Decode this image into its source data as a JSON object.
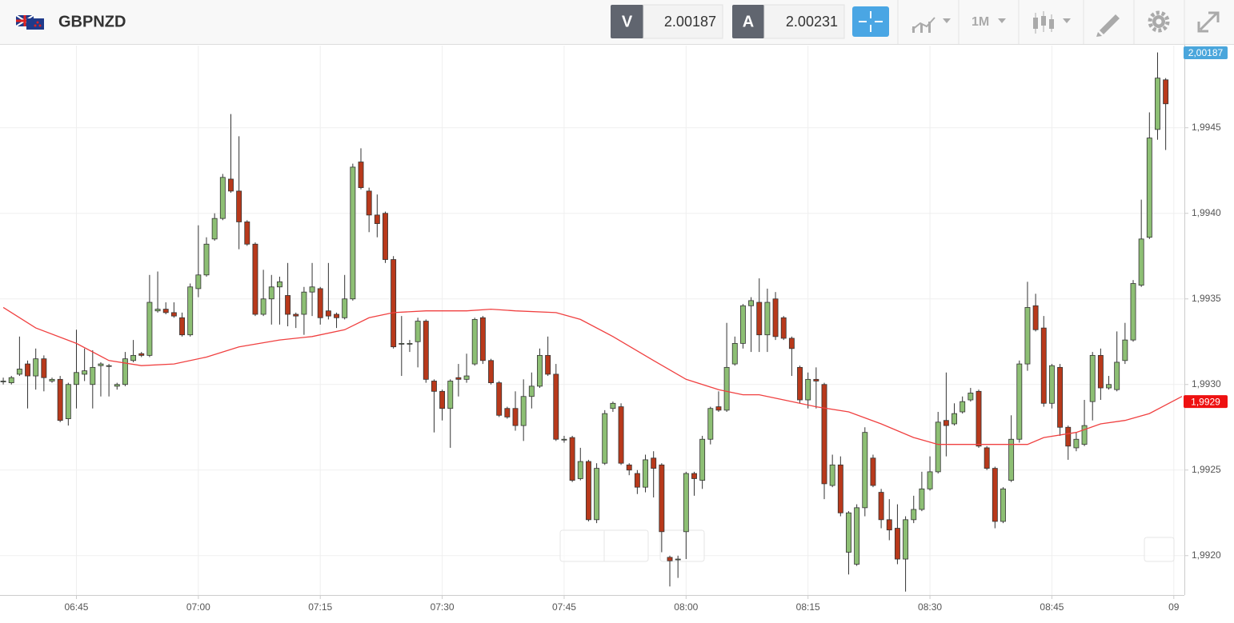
{
  "toolbar": {
    "symbol": "GBPNZD",
    "bid": {
      "label": "V",
      "price": "2.00187"
    },
    "ask": {
      "label": "A",
      "price": "2.00231"
    },
    "timeframe": "1M"
  },
  "chart_data": {
    "type": "candlestick",
    "x": [
      396,
      397,
      398,
      399,
      400,
      401,
      402,
      403,
      404,
      405,
      406,
      407,
      408,
      409,
      410,
      411,
      412,
      413,
      414,
      415,
      416,
      417,
      418,
      419,
      420,
      421,
      422,
      423,
      424,
      425,
      426,
      427,
      428,
      429,
      430,
      431,
      432,
      433,
      434,
      435,
      436,
      437,
      438,
      439,
      440,
      441,
      442,
      443,
      444,
      445,
      446,
      447,
      448,
      449,
      450,
      451,
      452,
      453,
      454,
      455,
      456,
      457,
      458,
      459,
      460,
      461,
      462,
      463,
      464,
      465,
      466,
      467,
      468,
      469,
      470,
      471,
      472,
      473,
      474,
      475,
      476,
      477,
      478,
      479,
      480,
      481,
      482,
      483,
      484,
      485,
      486,
      487,
      488,
      489,
      490,
      491,
      492,
      493,
      494,
      495,
      496,
      497,
      498,
      499,
      500,
      501,
      502,
      503,
      504,
      505,
      506,
      507,
      508,
      509,
      510,
      511,
      512,
      513,
      514,
      515,
      516,
      517,
      518,
      519,
      520,
      521,
      522,
      523,
      524,
      525,
      526,
      527,
      528,
      529,
      530,
      531,
      532,
      533,
      534,
      535,
      536,
      537,
      538,
      539
    ],
    "open": [
      1.99302,
      1.99301,
      1.99306,
      1.99312,
      1.99305,
      1.99315,
      1.99302,
      1.99303,
      1.9928,
      1.993,
      1.99306,
      1.993,
      1.99311,
      1.99311,
      1.99299,
      1.993,
      1.99314,
      1.99318,
      1.99317,
      1.99343,
      1.99344,
      1.99342,
      1.99339,
      1.99329,
      1.99356,
      1.99364,
      1.99385,
      1.99397,
      1.9942,
      1.99413,
      1.99395,
      1.99382,
      1.99341,
      1.9935,
      1.99357,
      1.99352,
      1.99341,
      1.99341,
      1.99354,
      1.99356,
      1.99343,
      1.99341,
      1.99339,
      1.9935,
      1.9943,
      1.99413,
      1.99399,
      1.994,
      1.99373,
      1.99324,
      1.99324,
      1.99325,
      1.99337,
      1.99302,
      1.99296,
      1.99286,
      1.99304,
      1.99303,
      1.99312,
      1.99339,
      1.99314,
      1.99301,
      1.99286,
      1.99286,
      1.99276,
      1.99293,
      1.99299,
      1.99317,
      1.99306,
      1.99268,
      1.99269,
      1.99245,
      1.99255,
      1.99221,
      1.99254,
      1.99286,
      1.99287,
      1.99253,
      1.99248,
      1.9924,
      1.99257,
      1.99253,
      1.99199,
      1.99198,
      1.99214,
      1.99248,
      1.99244,
      1.99268,
      1.99287,
      1.99285,
      1.99312,
      1.99324,
      1.99346,
      1.99348,
      1.99329,
      1.9935,
      1.99339,
      1.99327,
      1.9931,
      1.99291,
      1.99303,
      1.993,
      1.99241,
      1.99253,
      1.99202,
      1.99195,
      1.99228,
      1.99257,
      1.99237,
      1.99221,
      1.99216,
      1.99198,
      1.99221,
      1.99227,
      1.99239,
      1.99249,
      1.99279,
      1.99277,
      1.99284,
      1.99291,
      1.99296,
      1.99263,
      1.99251,
      1.9922,
      1.99244,
      1.99268,
      1.99312,
      1.99346,
      1.99333,
      1.99289,
      1.9931,
      1.99275,
      1.99263,
      1.99265,
      1.9929,
      1.99317,
      1.99298,
      1.99297,
      1.99314,
      1.99326,
      1.99358,
      1.99386,
      1.99449,
      1.99478
    ],
    "high": [
      1.99304,
      1.99305,
      1.99328,
      1.99314,
      1.99321,
      1.99317,
      1.99304,
      1.99305,
      1.99301,
      1.99332,
      1.99321,
      1.9932,
      1.99313,
      1.99312,
      1.99301,
      1.99319,
      1.99326,
      1.99319,
      1.99364,
      1.99366,
      1.99348,
      1.99348,
      1.99342,
      1.99359,
      1.99393,
      1.99386,
      1.994,
      1.99423,
      1.99458,
      1.99445,
      1.99396,
      1.99383,
      1.99367,
      1.99364,
      1.99363,
      1.99371,
      1.99342,
      1.99357,
      1.99371,
      1.99357,
      1.99371,
      1.99342,
      1.99364,
      1.99429,
      1.99438,
      1.99415,
      1.99411,
      1.99401,
      1.99375,
      1.9934,
      1.99326,
      1.99339,
      1.99338,
      1.99303,
      1.99297,
      1.99303,
      1.99312,
      1.99318,
      1.99339,
      1.9934,
      1.99315,
      1.99302,
      1.99287,
      1.99296,
      1.99303,
      1.99307,
      1.99321,
      1.99328,
      1.99312,
      1.9927,
      1.9927,
      1.99263,
      1.99256,
      1.99254,
      1.99285,
      1.9929,
      1.99289,
      1.99254,
      1.9925,
      1.99259,
      1.99261,
      1.99254,
      1.992,
      1.992,
      1.99249,
      1.99249,
      1.9927,
      1.99287,
      1.99296,
      1.99336,
      1.99328,
      1.99347,
      1.99351,
      1.99362,
      1.99356,
      1.99354,
      1.9934,
      1.99328,
      1.99311,
      1.99307,
      1.9931,
      1.99301,
      1.99259,
      1.99258,
      1.99226,
      1.9923,
      1.99275,
      1.99259,
      1.99239,
      1.99233,
      1.9923,
      1.99223,
      1.99235,
      1.99249,
      1.99258,
      1.99284,
      1.99307,
      1.99289,
      1.99293,
      1.99298,
      1.99297,
      1.99264,
      1.99252,
      1.9924,
      1.99282,
      1.99314,
      1.9936,
      1.99353,
      1.9934,
      1.99312,
      1.99312,
      1.99276,
      1.99272,
      1.99291,
      1.99319,
      1.99321,
      1.99305,
      1.99331,
      1.99336,
      1.99361,
      1.99408,
      1.99459,
      1.99494,
      1.99479
    ],
    "low": [
      1.993,
      1.993,
      1.99305,
      1.99286,
      1.99297,
      1.99296,
      1.99301,
      1.99278,
      1.99276,
      1.99286,
      1.99302,
      1.99286,
      1.99293,
      1.99293,
      1.99297,
      1.99299,
      1.99313,
      1.99316,
      1.99316,
      1.99342,
      1.99341,
      1.99339,
      1.99328,
      1.99328,
      1.99351,
      1.99363,
      1.99384,
      1.99396,
      1.99412,
      1.99379,
      1.99381,
      1.9934,
      1.9934,
      1.99335,
      1.99335,
      1.99334,
      1.99333,
      1.99329,
      1.9934,
      1.99335,
      1.99338,
      1.99333,
      1.99338,
      1.99349,
      1.99414,
      1.99389,
      1.99386,
      1.99371,
      1.99321,
      1.99305,
      1.99319,
      1.9931,
      1.99301,
      1.99272,
      1.99279,
      1.99263,
      1.99293,
      1.99301,
      1.99311,
      1.99312,
      1.993,
      1.99281,
      1.9928,
      1.99273,
      1.99267,
      1.99286,
      1.99298,
      1.99305,
      1.99267,
      1.99266,
      1.99243,
      1.99244,
      1.9922,
      1.99219,
      1.99253,
      1.99284,
      1.99253,
      1.99247,
      1.99236,
      1.99237,
      1.99234,
      1.99202,
      1.99182,
      1.99187,
      1.99198,
      1.99235,
      1.99239,
      1.99265,
      1.99284,
      1.99284,
      1.99311,
      1.99321,
      1.99319,
      1.99319,
      1.99319,
      1.99326,
      1.99326,
      1.99305,
      1.99289,
      1.99286,
      1.99286,
      1.99233,
      1.9924,
      1.99223,
      1.99189,
      1.99194,
      1.99223,
      1.9924,
      1.99216,
      1.99209,
      1.99195,
      1.99179,
      1.99219,
      1.99226,
      1.99238,
      1.99248,
      1.99258,
      1.99276,
      1.99283,
      1.9929,
      1.99263,
      1.9925,
      1.99216,
      1.99219,
      1.99243,
      1.99266,
      1.99308,
      1.99331,
      1.99287,
      1.99286,
      1.9927,
      1.99256,
      1.99261,
      1.99264,
      1.99279,
      1.99291,
      1.99297,
      1.99296,
      1.99312,
      1.99325,
      1.99357,
      1.99385,
      1.99443,
      1.99437
    ],
    "close": [
      1.99302,
      1.99304,
      1.99309,
      1.99305,
      1.99315,
      1.99304,
      1.99303,
      1.99279,
      1.993,
      1.99307,
      1.99308,
      1.9931,
      1.99312,
      1.99311,
      1.993,
      1.99315,
      1.99317,
      1.99317,
      1.99348,
      1.99344,
      1.99342,
      1.9934,
      1.99329,
      1.99357,
      1.99364,
      1.99382,
      1.99397,
      1.99421,
      1.99413,
      1.99395,
      1.99382,
      1.99341,
      1.9935,
      1.99357,
      1.9936,
      1.99341,
      1.9934,
      1.99354,
      1.99357,
      1.99339,
      1.9934,
      1.99339,
      1.9935,
      1.99427,
      1.99415,
      1.99399,
      1.99394,
      1.99373,
      1.99322,
      1.99324,
      1.99324,
      1.99337,
      1.99303,
      1.99296,
      1.99286,
      1.99302,
      1.99303,
      1.99305,
      1.99338,
      1.99314,
      1.99301,
      1.99282,
      1.99281,
      1.99276,
      1.99293,
      1.99299,
      1.99317,
      1.99306,
      1.99268,
      1.99268,
      1.99244,
      1.99255,
      1.99221,
      1.99251,
      1.99283,
      1.99289,
      1.99254,
      1.9925,
      1.9924,
      1.99256,
      1.99251,
      1.99214,
      1.99197,
      1.99198,
      1.99248,
      1.99245,
      1.99268,
      1.99286,
      1.99285,
      1.9931,
      1.99324,
      1.99346,
      1.99349,
      1.99329,
      1.99348,
      1.99328,
      1.99327,
      1.99321,
      1.99291,
      1.99303,
      1.99302,
      1.99242,
      1.99253,
      1.99225,
      1.99225,
      1.99228,
      1.99272,
      1.99241,
      1.99221,
      1.99215,
      1.99198,
      1.99221,
      1.99227,
      1.99239,
      1.99249,
      1.99278,
      1.99276,
      1.99283,
      1.9929,
      1.99295,
      1.99264,
      1.99251,
      1.9922,
      1.99239,
      1.99268,
      1.99312,
      1.99345,
      1.99332,
      1.99289,
      1.99311,
      1.99275,
      1.99264,
      1.99268,
      1.99276,
      1.99317,
      1.99298,
      1.993,
      1.99313,
      1.99326,
      1.99359,
      1.99385,
      1.99444,
      1.99479,
      1.99464
    ],
    "up_color": "#8dbf74",
    "down_color": "#b8391b",
    "moving_average": {
      "color": "#f04040",
      "x": [
        396,
        400,
        405,
        409,
        413,
        417,
        421,
        425,
        430,
        434,
        438,
        441,
        444,
        448,
        453,
        456,
        459,
        464,
        467,
        471,
        476,
        480,
        484,
        487,
        489,
        492,
        496,
        500,
        504,
        508,
        511,
        514,
        518,
        522,
        524,
        528,
        531,
        534,
        537,
        541
      ],
      "values": [
        1.99345,
        1.99333,
        1.99324,
        1.99314,
        1.99311,
        1.99312,
        1.99316,
        1.99322,
        1.99326,
        1.99328,
        1.99332,
        1.99339,
        1.99342,
        1.99343,
        1.99343,
        1.99344,
        1.99343,
        1.99342,
        1.99338,
        1.99328,
        1.99314,
        1.99303,
        1.99297,
        1.99294,
        1.99294,
        1.99291,
        1.99287,
        1.99284,
        1.99277,
        1.99269,
        1.99265,
        1.99265,
        1.99265,
        1.99265,
        1.99269,
        1.99272,
        1.99277,
        1.99279,
        1.99283,
        1.99293
      ]
    },
    "xlim": [
      395.6,
      541.3
    ],
    "xticks": [
      {
        "value": 405,
        "label": "06:45"
      },
      {
        "value": 420,
        "label": "07:00"
      },
      {
        "value": 435,
        "label": "07:15"
      },
      {
        "value": 450,
        "label": "07:30"
      },
      {
        "value": 465,
        "label": "07:45"
      },
      {
        "value": 480,
        "label": "08:00"
      },
      {
        "value": 495,
        "label": "08:15"
      },
      {
        "value": 510,
        "label": "08:30"
      },
      {
        "value": 525,
        "label": "08:45"
      },
      {
        "value": 540,
        "label": "09"
      }
    ],
    "ylim": [
      1.99177,
      1.99498
    ],
    "yticks": [
      {
        "value": 1.992,
        "label": "1,9920"
      },
      {
        "value": 1.9925,
        "label": "1,9925"
      },
      {
        "value": 1.993,
        "label": "1,9930"
      },
      {
        "value": 1.9935,
        "label": "1,9935"
      },
      {
        "value": 1.994,
        "label": "1,9940"
      },
      {
        "value": 1.9945,
        "label": "1,9945"
      }
    ],
    "grid": true,
    "price_tags": [
      {
        "value": 2.00187,
        "label": "2,00187",
        "color": "#4aa6dc"
      },
      {
        "value": 1.9929,
        "label": "1,9929",
        "color": "#ee1111"
      }
    ]
  }
}
